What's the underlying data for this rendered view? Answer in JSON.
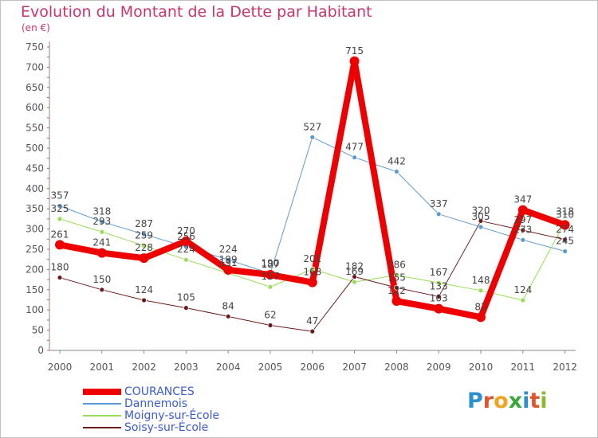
{
  "title": "Evolution du Montant de la Dette par Habitant",
  "unit": "(en €)",
  "logo": {
    "text": "Proxiti",
    "letter_colors": [
      "#2b8fd1",
      "#e0562c",
      "#f2a31b",
      "#3aa83a",
      "#2b8fd1",
      "#e0562c",
      "#8bbb2c"
    ]
  },
  "chart_data": {
    "type": "line",
    "categories": [
      "2000",
      "2001",
      "2002",
      "2003",
      "2004",
      "2005",
      "2006",
      "2007",
      "2008",
      "2009",
      "2010",
      "2011",
      "2012"
    ],
    "ylim": [
      0,
      750
    ],
    "yticks": [
      0,
      50,
      100,
      150,
      200,
      250,
      300,
      350,
      400,
      450,
      500,
      550,
      600,
      650,
      700,
      750
    ],
    "grid": false,
    "legend_position": "bottom-left",
    "series": [
      {
        "name": "COURANCES",
        "color": "#ee0000",
        "width": 8,
        "marker_r": 6,
        "values": [
          261,
          241,
          228,
          270,
          199,
          187,
          168,
          715,
          122,
          103,
          82,
          347,
          310
        ],
        "labels": [
          "261",
          "241",
          "228",
          "270",
          "199",
          "187",
          "168",
          "715",
          "122",
          "103",
          "82",
          "347",
          "310"
        ]
      },
      {
        "name": "Dannemois",
        "color": "#5b9ad0",
        "width": 1,
        "marker_r": 3,
        "values": [
          357,
          318,
          287,
          256,
          224,
          190,
          527,
          477,
          442,
          337,
          305,
          273,
          245
        ],
        "labels": [
          "357",
          "318",
          "287",
          "256",
          "224",
          "190",
          "527",
          "477",
          "442",
          "337",
          "305",
          "273",
          "245"
        ]
      },
      {
        "name": "Moigny-sur-École",
        "color": "#99dd55",
        "width": 1,
        "marker_r": 3,
        "values": [
          325,
          293,
          259,
          224,
          191,
          157,
          201,
          169,
          186,
          167,
          148,
          124,
          318
        ],
        "labels": [
          "325",
          "293",
          "259",
          "224",
          "191",
          "157",
          "201",
          "169",
          "186",
          "167",
          "148",
          "124",
          "318"
        ]
      },
      {
        "name": "Soisy-sur-École",
        "color": "#6b1a1a",
        "width": 1,
        "marker_r": 3,
        "values": [
          180,
          150,
          124,
          105,
          84,
          62,
          47,
          182,
          155,
          133,
          320,
          297,
          274
        ],
        "labels": [
          "180",
          "150",
          "124",
          "105",
          "84",
          "62",
          "47",
          "182",
          "155",
          "133",
          "320",
          "297",
          "274"
        ]
      }
    ]
  }
}
